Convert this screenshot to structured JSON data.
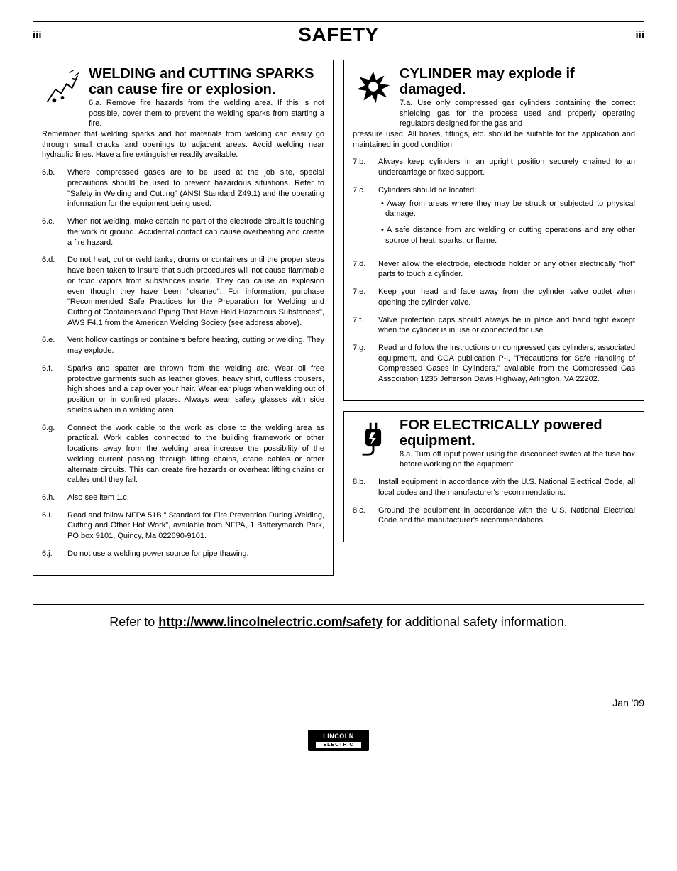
{
  "header": {
    "page_left": "iii",
    "title": "SAFETY",
    "page_right": "iii"
  },
  "left": {
    "welding": {
      "title": "WELDING and CUTTING SPARKS can cause fire or explosion.",
      "intro_first": "6.a. Remove fire hazards from the welding area. If this is not possible, cover them to prevent the welding sparks from starting a fire.",
      "intro_rest": "Remember that welding sparks and hot materials from welding can easily go through small cracks and openings to adjacent areas. Avoid welding near hydraulic lines. Have a fire extinguisher readily available.",
      "items": [
        {
          "ref": "6.b.",
          "text": "Where compressed gases are to be used at the job site, special precautions should be used to prevent hazardous situations. Refer to \"Safety in Welding and Cutting\" (ANSI Standard Z49.1) and the operating information for the equipment being used."
        },
        {
          "ref": "6.c.",
          "text": "When not welding, make certain no part of the electrode circuit is touching the work or ground. Accidental contact can cause overheating and create a fire hazard."
        },
        {
          "ref": "6.d.",
          "text": "Do not heat, cut or weld tanks, drums or containers until the proper steps have been taken to insure that such procedures will not cause flammable or toxic vapors from substances inside. They can cause an explosion even though they have been \"cleaned\". For information, purchase \"Recommended Safe Practices for the Preparation for Welding and Cutting of Containers and Piping That Have Held Hazardous Substances\", AWS F4.1 from the American Welding Society (see address above)."
        },
        {
          "ref": "6.e.",
          "text": "Vent hollow castings or containers before heating, cutting or welding. They may explode."
        },
        {
          "ref": "6.f.",
          "text": "Sparks and spatter are thrown from the welding arc. Wear oil free protective garments such as leather gloves, heavy shirt, cuffless trousers, high shoes and a cap over your hair. Wear ear plugs when welding out of position or in confined places. Always wear safety glasses with side shields when in a welding area."
        },
        {
          "ref": "6.g.",
          "text": "Connect the work cable to the work as close to the welding area as practical. Work cables connected to the building framework or other locations away from the welding area increase the possibility of the welding current passing through lifting chains, crane cables or other alternate circuits. This can create fire hazards or overheat lifting chains or cables until they fail."
        },
        {
          "ref": "6.h.",
          "text": "Also see item 1.c."
        },
        {
          "ref": "6.I.",
          "text": "Read and follow NFPA 51B \" Standard for Fire Prevention During Welding, Cutting and Other Hot Work\", available from NFPA, 1 Batterymarch Park, PO box 9101, Quincy, Ma 022690-9101."
        },
        {
          "ref": "6.j.",
          "text": "Do not use a welding power source for pipe thawing."
        }
      ]
    }
  },
  "right": {
    "cylinder": {
      "title": "CYLINDER may explode if damaged.",
      "intro_first": "7.a. Use only compressed gas cylinders containing the correct shielding gas for the process used and properly operating regulators designed for the gas and",
      "intro_rest": "pressure used. All hoses, fittings, etc. should be suitable for the application and maintained in good condition.",
      "items": [
        {
          "ref": "7.b.",
          "text": "Always keep cylinders in an upright position securely chained to an undercarriage or fixed support."
        },
        {
          "ref": "7.c.",
          "text": "Cylinders should be located:",
          "bullets": [
            "Away from areas where they may be struck or subjected to physical damage.",
            "A safe distance from arc welding or cutting operations and any other source of heat, sparks, or flame."
          ]
        },
        {
          "ref": "7.d.",
          "text": "Never allow the electrode, electrode holder or any other electrically \"hot\" parts to touch a cylinder."
        },
        {
          "ref": "7.e.",
          "text": "Keep your head and face away from the cylinder valve outlet when opening the cylinder valve."
        },
        {
          "ref": "7.f.",
          "text": "Valve protection caps should always be in place and hand tight except when the cylinder is in use or connected for use."
        },
        {
          "ref": "7.g.",
          "text": "Read and follow the instructions on compressed gas cylinders, associated equipment, and CGA publication P-l, \"Precautions for Safe Handling of Compressed Gases in Cylinders,\" available from the Compressed Gas Association 1235 Jefferson Davis Highway, Arlington, VA 22202."
        }
      ]
    },
    "electrical": {
      "title": "FOR ELECTRICALLY powered equipment.",
      "intro_first": "8.a. Turn off input power using the disconnect switch at the fuse box before working on the equipment.",
      "items": [
        {
          "ref": "8.b.",
          "text": "Install equipment in accordance with the U.S. National Electrical Code, all local codes and the manufacturer's recommendations."
        },
        {
          "ref": "8.c.",
          "text": "Ground the equipment in accordance with the U.S. National Electrical Code and the manufacturer's recommendations."
        }
      ]
    }
  },
  "refer": {
    "prefix": "Refer to ",
    "link_text": "http://www.lincolnelectric.com/safety",
    "suffix": " for additional safety information."
  },
  "footer": {
    "date": "Jan '09",
    "logo_top": "LINCOLN",
    "logo_sub": "ELECTRIC"
  }
}
